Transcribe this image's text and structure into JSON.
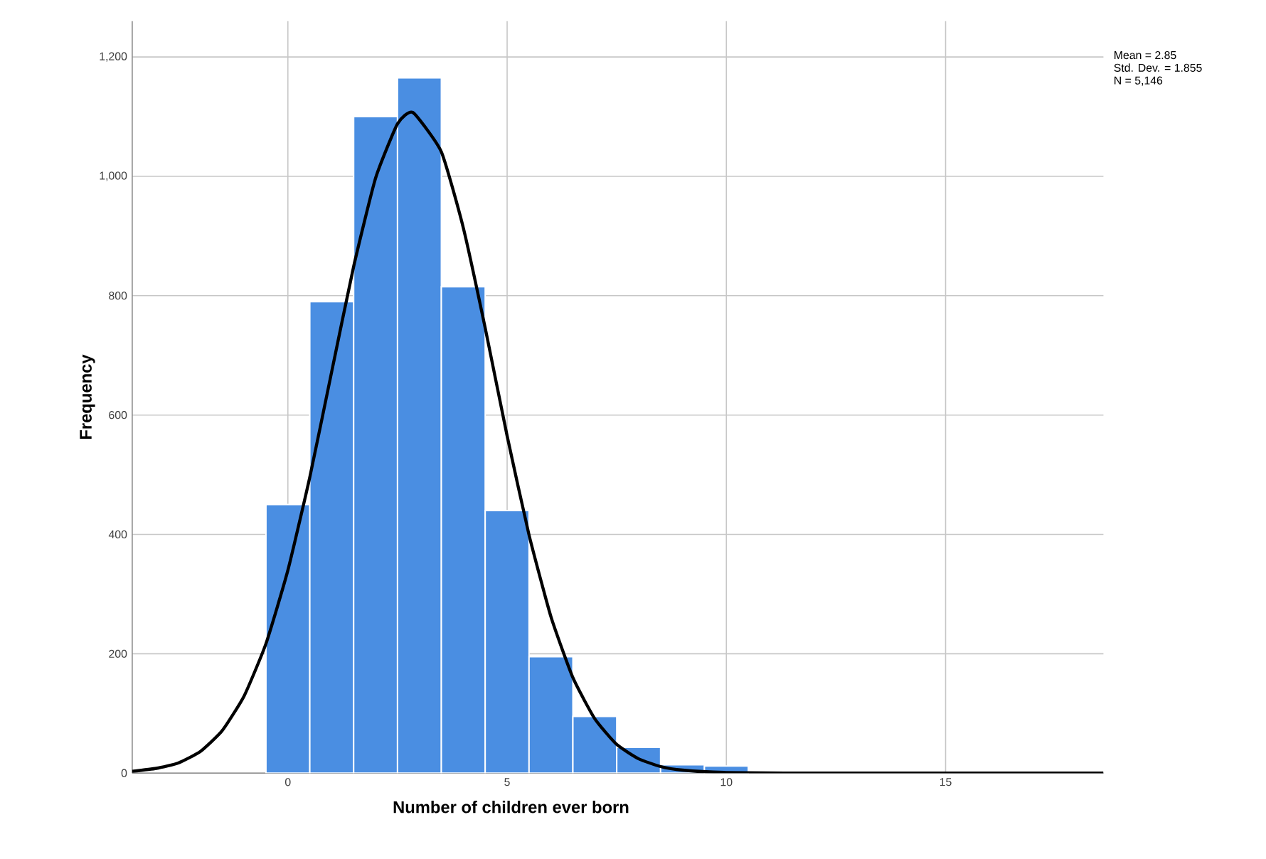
{
  "chart_data": {
    "type": "histogram",
    "xlabel": "Number of children ever born",
    "ylabel": "Frequency",
    "bins": [
      -0.5,
      0.5,
      1.5,
      2.5,
      3.5,
      4.5,
      5.5,
      6.5,
      7.5,
      8.5,
      9.5,
      10.5
    ],
    "values": [
      450,
      790,
      1100,
      1165,
      815,
      440,
      195,
      95,
      43,
      14,
      12
    ],
    "color": "#4a8ee2",
    "series": [
      {
        "type": "line",
        "color": "#000000",
        "x": [
          -3.55,
          -3,
          -2.5,
          -2,
          -1.5,
          -1,
          -0.5,
          0,
          0.5,
          1,
          1.5,
          2,
          2.5,
          2.85,
          3.5,
          4,
          4.5,
          5,
          5.5,
          6,
          6.5,
          7,
          7.5,
          8,
          8.5,
          9,
          10,
          12,
          18.6
        ],
        "values": [
          3,
          8,
          17,
          36,
          71,
          129,
          217,
          340,
          496,
          673,
          849,
          997,
          1088,
          1107,
          1041,
          914,
          746,
          565,
          399,
          262,
          160,
          91,
          48,
          24,
          11,
          5,
          1,
          0,
          0
        ]
      }
    ],
    "xlim": [
      -3.55,
      18.6
    ],
    "xticks": [
      0,
      5,
      10,
      15
    ],
    "ylim": [
      0,
      1260
    ],
    "yticks": [
      0,
      200,
      400,
      600,
      800,
      {
        "value": 1000,
        "label": "1,000"
      },
      {
        "value": 1200,
        "label": "1,200"
      }
    ],
    "grid": true,
    "annotations": [
      "Mean = 2.85",
      "Std. Dev. = 1.855",
      "N = 5,146"
    ]
  }
}
